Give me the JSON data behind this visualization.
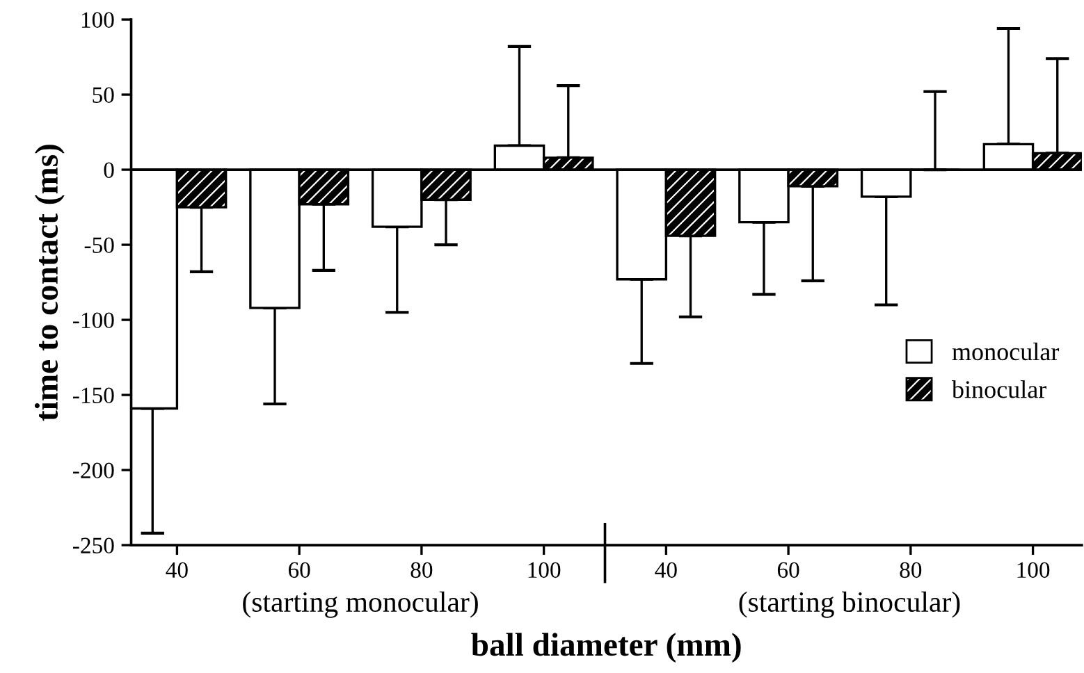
{
  "chart_data": {
    "type": "bar",
    "xlabel": "ball diameter (mm)",
    "ylabel": "time to contact (ms)",
    "categories": [
      "40",
      "60",
      "80",
      "100",
      "40",
      "60",
      "80",
      "100"
    ],
    "series": [
      {
        "name": "monocular",
        "color": "#ffffff",
        "values": [
          -159,
          -92,
          -38,
          16,
          -73,
          -35,
          -18,
          17
        ],
        "errors": [
          [
            -242,
            -159
          ],
          [
            -156,
            -92
          ],
          [
            -95,
            -38
          ],
          [
            16,
            82
          ],
          [
            -129,
            -73
          ],
          [
            -83,
            -35
          ],
          [
            -90,
            -18
          ],
          [
            17,
            94
          ]
        ]
      },
      {
        "name": "binocular",
        "color": "#000000",
        "values": [
          -25,
          -23,
          -20,
          8,
          -44,
          -11,
          0,
          11
        ],
        "errors": [
          [
            -68,
            -25
          ],
          [
            -67,
            -23
          ],
          [
            -50,
            -20
          ],
          [
            8,
            56
          ],
          [
            -98,
            -44
          ],
          [
            -74,
            -11
          ],
          [
            0,
            52
          ],
          [
            11,
            74
          ]
        ]
      }
    ],
    "ylim": [
      -250,
      100
    ],
    "yticks": [
      -250,
      -200,
      -150,
      -100,
      -50,
      0,
      50,
      100
    ],
    "ref_lines": [
      {
        "axis": "y",
        "value": 0
      }
    ],
    "annotations": [
      "(starting monocular)",
      "(starting binocular)"
    ],
    "legend": "right",
    "grid": false
  }
}
